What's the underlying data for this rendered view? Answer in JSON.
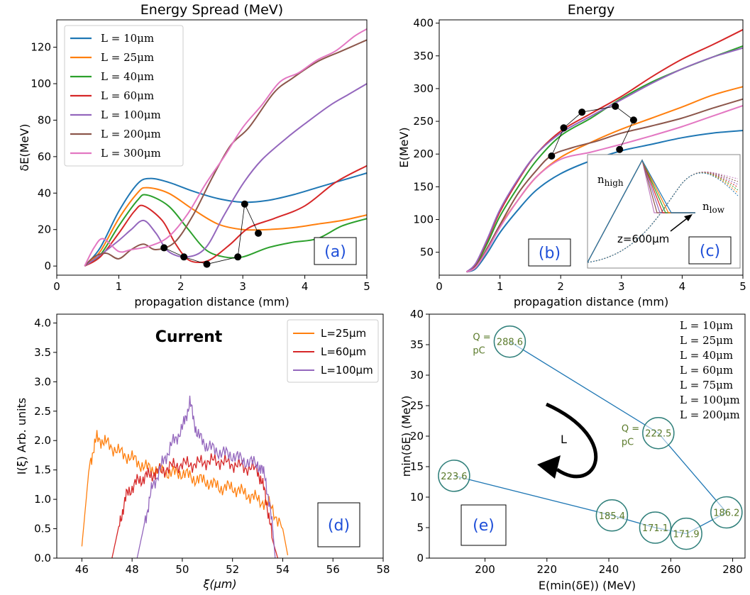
{
  "colors": {
    "L10": "#1f77b4",
    "L25": "#ff7f0e",
    "L40": "#2ca02c",
    "L60": "#d62728",
    "L100": "#9467bd",
    "L200": "#8c564b",
    "L300": "#e377c2",
    "panel_label": "#1f4fd8",
    "circle_edge": "#2f7f7a",
    "circle_text": "#5a7a2a",
    "line_e": "#1f77b4"
  },
  "panels": {
    "a": {
      "title": "Energy Spread (MeV)",
      "xlabel": "propagation distance (mm)",
      "ylabel": "δE(MeV)",
      "label": "(a)",
      "xticks": [
        "0",
        "1",
        "2",
        "3",
        "4",
        "5"
      ],
      "yticks": [
        "0",
        "20",
        "40",
        "60",
        "80",
        "100",
        "120"
      ],
      "legend": [
        "L = 10μm",
        "L = 25μm",
        "L = 40μm",
        "L = 60μm",
        "L = 100μm",
        "L = 200μm",
        "L = 300μm"
      ]
    },
    "b": {
      "title": "Energy",
      "xlabel": "propagation distance (mm)",
      "ylabel": "E(MeV)",
      "label": "(b)",
      "xticks": [
        "0",
        "1",
        "2",
        "3",
        "4",
        "5"
      ],
      "yticks": [
        "50",
        "100",
        "150",
        "200",
        "250",
        "300",
        "350",
        "400"
      ]
    },
    "c": {
      "label": "(c)",
      "n_high": "n",
      "n_high_sub": "high",
      "n_low": "n",
      "n_low_sub": "low",
      "z_text": "z=600μm"
    },
    "d": {
      "title": "Current",
      "xlabel": "ξ(μm)",
      "ylabel": "I(ξ) Arb. units",
      "label": "(d)",
      "xticks": [
        "46",
        "48",
        "50",
        "52",
        "54",
        "56",
        "58"
      ],
      "yticks": [
        "0.0",
        "0.5",
        "1.0",
        "1.5",
        "2.0",
        "2.5",
        "3.0",
        "3.5",
        "4.0"
      ],
      "legend": [
        "L=25μm",
        "L=60μm",
        "L=100μm"
      ]
    },
    "e": {
      "xlabel": "E(min(δE)) (MeV)",
      "ylabel": "min(δE) (MeV)",
      "label": "(e)",
      "arrow_label": "L",
      "xticks": [
        "200",
        "220",
        "240",
        "260",
        "280"
      ],
      "yticks": [
        "0",
        "5",
        "10",
        "15",
        "20",
        "25",
        "30",
        "35",
        "40"
      ],
      "legend": [
        "L = 10μm",
        "L = 25μm",
        "L = 40μm",
        "L = 60μm",
        "L = 75μm",
        "L = 100μm",
        "L = 200μm"
      ],
      "q_labels": [
        "Q =",
        "pC"
      ]
    }
  },
  "chart_data": [
    {
      "type": "line",
      "title": "Energy Spread (MeV)",
      "xlabel": "propagation distance (mm)",
      "ylabel": "δE(MeV)",
      "xlim": [
        0,
        5
      ],
      "ylim": [
        -5,
        135
      ],
      "series": [
        {
          "name": "L = 10μm",
          "x": [
            0.45,
            0.7,
            1.0,
            1.3,
            1.5,
            1.8,
            2.2,
            2.6,
            3.0,
            3.4,
            3.8,
            4.2,
            4.6,
            5.0
          ],
          "y": [
            0,
            10,
            30,
            45,
            48,
            46,
            41,
            37,
            35,
            36,
            39,
            43,
            47,
            51
          ]
        },
        {
          "name": "L = 25μm",
          "x": [
            0.45,
            0.7,
            1.0,
            1.3,
            1.45,
            1.8,
            2.2,
            2.6,
            3.0,
            3.4,
            3.8,
            4.2,
            4.6,
            5.0
          ],
          "y": [
            0,
            8,
            26,
            40,
            43,
            40,
            31,
            23,
            20,
            20,
            21,
            23,
            25,
            28
          ]
        },
        {
          "name": "L = 40μm",
          "x": [
            0.45,
            0.7,
            1.0,
            1.3,
            1.45,
            1.8,
            2.1,
            2.4,
            2.7,
            3.0,
            3.4,
            3.8,
            4.2,
            4.6,
            5.0
          ],
          "y": [
            0,
            6,
            22,
            36,
            39,
            33,
            21,
            9,
            5,
            5,
            10,
            13,
            15,
            22,
            26
          ]
        },
        {
          "name": "L = 60μm",
          "x": [
            0.45,
            0.7,
            1.0,
            1.25,
            1.4,
            1.7,
            1.9,
            2.1,
            2.3,
            2.5,
            2.8,
            3.1,
            3.5,
            4.0,
            4.5,
            5.0
          ],
          "y": [
            0,
            5,
            18,
            30,
            33,
            25,
            13,
            4,
            2,
            4,
            12,
            21,
            26,
            33,
            46,
            55
          ]
        },
        {
          "name": "L = 100μm",
          "x": [
            0.45,
            0.7,
            1.0,
            1.2,
            1.4,
            1.6,
            1.8,
            2.1,
            2.4,
            2.7,
            3.0,
            3.3,
            3.7,
            4.0,
            4.4,
            4.7,
            5.0
          ],
          "y": [
            0,
            6,
            14,
            20,
            25,
            18,
            8,
            5,
            10,
            28,
            45,
            58,
            70,
            78,
            88,
            94,
            100
          ]
        },
        {
          "name": "L = 200μm",
          "x": [
            0.45,
            0.6,
            0.8,
            1.0,
            1.2,
            1.4,
            1.6,
            1.9,
            2.2,
            2.5,
            2.8,
            3.1,
            3.5,
            3.8,
            4.2,
            4.6,
            5.0
          ],
          "y": [
            0,
            5,
            7,
            4,
            9,
            12,
            9,
            13,
            28,
            48,
            66,
            76,
            95,
            103,
            112,
            118,
            124
          ]
        },
        {
          "name": "L = 300μm",
          "x": [
            0.45,
            0.6,
            0.75,
            1.0,
            1.2,
            1.5,
            1.8,
            2.1,
            2.4,
            2.7,
            3.0,
            3.3,
            3.6,
            3.9,
            4.2,
            4.5,
            4.8,
            5.0
          ],
          "y": [
            0,
            10,
            15,
            8,
            9,
            11,
            16,
            28,
            45,
            60,
            76,
            88,
            101,
            106,
            113,
            118,
            126,
            130
          ]
        }
      ],
      "markers": {
        "x": [
          1.73,
          2.05,
          2.42,
          2.92,
          3.03,
          3.25
        ],
        "y": [
          10,
          5,
          1,
          5,
          34,
          18
        ]
      }
    },
    {
      "type": "line",
      "title": "Energy",
      "xlabel": "propagation distance (mm)",
      "ylabel": "E(MeV)",
      "xlim": [
        0,
        5
      ],
      "ylim": [
        15,
        405
      ],
      "series": [
        {
          "name": "L = 10μm",
          "x": [
            0.45,
            0.6,
            0.8,
            1.0,
            1.3,
            1.6,
            2.0,
            2.5,
            3.0,
            3.5,
            4.0,
            4.5,
            5.0
          ],
          "y": [
            20,
            25,
            50,
            80,
            115,
            145,
            170,
            190,
            205,
            215,
            225,
            232,
            236
          ]
        },
        {
          "name": "L = 25μm",
          "x": [
            0.45,
            0.6,
            0.8,
            1.0,
            1.3,
            1.6,
            2.0,
            2.5,
            3.0,
            3.5,
            4.0,
            4.5,
            5.0
          ],
          "y": [
            20,
            27,
            55,
            90,
            130,
            165,
            195,
            218,
            238,
            255,
            272,
            290,
            303
          ]
        },
        {
          "name": "L = 40μm",
          "x": [
            0.45,
            0.6,
            0.8,
            1.0,
            1.3,
            1.6,
            2.0,
            2.5,
            3.0,
            3.5,
            4.0,
            4.5,
            5.0
          ],
          "y": [
            20,
            30,
            65,
            105,
            150,
            190,
            228,
            255,
            285,
            310,
            330,
            348,
            365
          ]
        },
        {
          "name": "L = 60μm",
          "x": [
            0.45,
            0.6,
            0.8,
            1.0,
            1.3,
            1.6,
            2.0,
            2.5,
            3.0,
            3.5,
            4.0,
            4.5,
            5.0
          ],
          "y": [
            20,
            32,
            70,
            112,
            160,
            200,
            235,
            262,
            288,
            318,
            345,
            367,
            390
          ]
        },
        {
          "name": "L = 100μm",
          "x": [
            0.45,
            0.6,
            0.8,
            1.0,
            1.3,
            1.6,
            2.0,
            2.5,
            3.0,
            3.5,
            4.0,
            4.5,
            5.0
          ],
          "y": [
            20,
            33,
            72,
            115,
            162,
            200,
            232,
            258,
            283,
            308,
            330,
            348,
            362
          ]
        },
        {
          "name": "L = 200μm",
          "x": [
            0.45,
            0.6,
            0.8,
            1.0,
            1.3,
            1.6,
            1.85,
            2.2,
            2.6,
            3.0,
            3.5,
            4.0,
            4.5,
            5.0
          ],
          "y": [
            20,
            28,
            58,
            92,
            140,
            175,
            198,
            210,
            220,
            232,
            243,
            255,
            270,
            284
          ]
        },
        {
          "name": "L = 300μm",
          "x": [
            0.45,
            0.6,
            0.8,
            1.0,
            1.3,
            1.6,
            2.0,
            2.5,
            3.0,
            3.5,
            4.0,
            4.5,
            5.0
          ],
          "y": [
            20,
            27,
            55,
            88,
            130,
            165,
            192,
            203,
            215,
            228,
            242,
            258,
            274
          ]
        }
      ],
      "markers": {
        "x": [
          1.85,
          2.05,
          2.35,
          2.9,
          3.2,
          2.97
        ],
        "y": [
          197,
          240,
          264,
          273,
          252,
          207
        ]
      }
    },
    {
      "type": "line",
      "title": "Current",
      "xlabel": "ξ(μm)",
      "ylabel": "I(ξ) Arb. units",
      "xlim": [
        45,
        58
      ],
      "ylim": [
        0,
        4.15
      ],
      "series": [
        {
          "name": "L=25μm",
          "x": [
            46.0,
            46.3,
            46.6,
            47.0,
            47.5,
            48.0,
            48.5,
            49.0,
            49.5,
            50.0,
            50.5,
            51.0,
            51.5,
            52.0,
            52.5,
            53.0,
            53.5,
            54.0,
            54.2
          ],
          "y": [
            0.2,
            1.6,
            2.05,
            1.95,
            1.8,
            1.7,
            1.55,
            1.5,
            1.45,
            1.45,
            1.35,
            1.3,
            1.2,
            1.2,
            1.1,
            1.0,
            0.9,
            0.5,
            0.05
          ]
        },
        {
          "name": "L=60μm",
          "x": [
            47.2,
            47.5,
            47.8,
            48.2,
            48.6,
            49.0,
            49.5,
            50.0,
            50.5,
            51.0,
            51.5,
            52.0,
            52.5,
            53.0,
            53.3,
            53.6,
            53.8
          ],
          "y": [
            0.0,
            0.6,
            1.1,
            1.3,
            1.4,
            1.45,
            1.55,
            1.6,
            1.6,
            1.65,
            1.65,
            1.6,
            1.55,
            1.5,
            1.1,
            0.3,
            0.0
          ]
        },
        {
          "name": "L=100μm",
          "x": [
            48.2,
            48.5,
            48.8,
            49.2,
            49.6,
            50.0,
            50.3,
            50.6,
            51.0,
            51.5,
            52.0,
            52.5,
            53.0,
            53.3,
            53.6,
            53.7
          ],
          "y": [
            0.0,
            0.6,
            1.2,
            1.6,
            1.95,
            2.2,
            2.65,
            2.1,
            1.9,
            1.8,
            1.75,
            1.65,
            1.6,
            1.4,
            0.5,
            0.0
          ]
        }
      ]
    },
    {
      "type": "scatter",
      "xlabel": "E(min(δE)) (MeV)",
      "ylabel": "min(δE) (MeV)",
      "xlim": [
        182,
        284
      ],
      "ylim": [
        0,
        40
      ],
      "points": [
        {
          "x": 208,
          "y": 35.5,
          "label": "288.6",
          "q": true
        },
        {
          "x": 256,
          "y": 20.5,
          "label": "222.5",
          "q": true
        },
        {
          "x": 278,
          "y": 7.5,
          "label": "186.2"
        },
        {
          "x": 265,
          "y": 4.0,
          "label": "171.9"
        },
        {
          "x": 255,
          "y": 5.0,
          "label": "171.1"
        },
        {
          "x": 241,
          "y": 7.0,
          "label": "185.4"
        },
        {
          "x": 190,
          "y": 13.5,
          "label": "223.6"
        }
      ]
    }
  ]
}
